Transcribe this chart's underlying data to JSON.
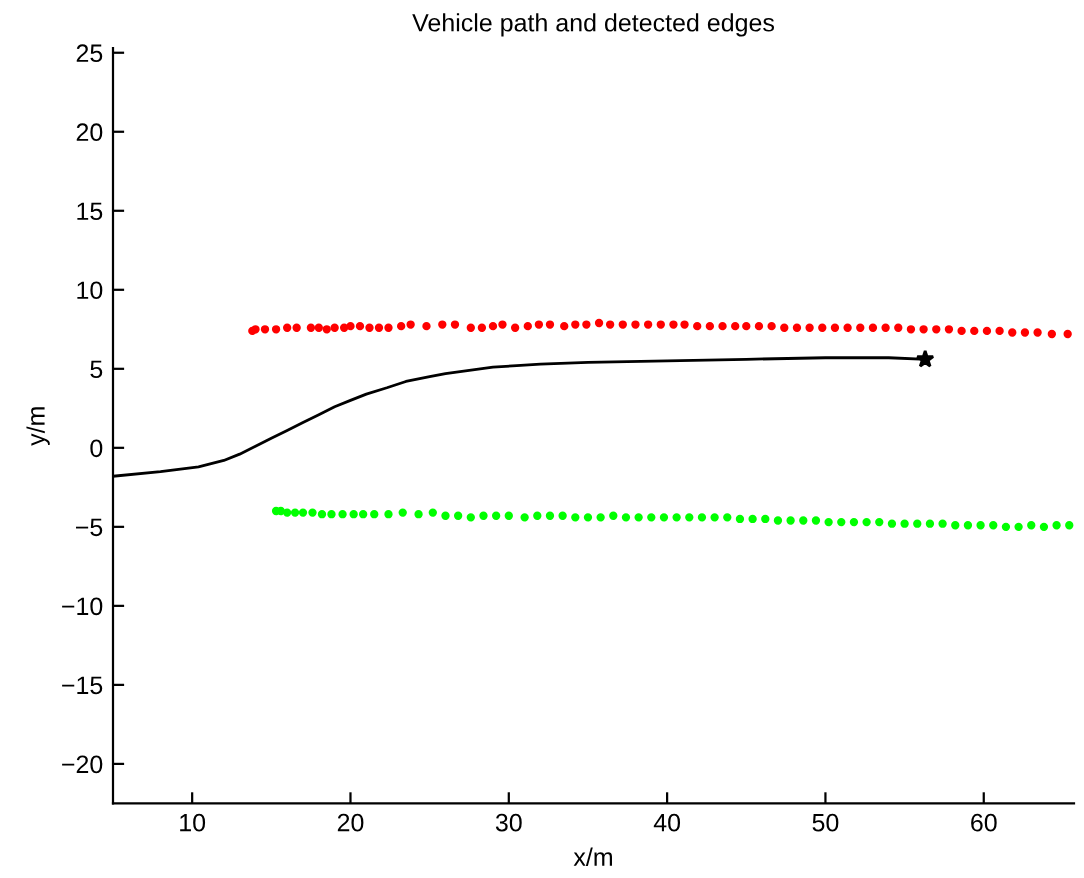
{
  "chart_data": {
    "type": "scatter",
    "title": "Vehicle path and detected edges",
    "xlabel": "x/m",
    "ylabel": "y/m",
    "xlim": [
      5,
      65.7
    ],
    "ylim": [
      -22.5,
      25.3
    ],
    "xticks": [
      10,
      20,
      30,
      40,
      50,
      60
    ],
    "yticks": [
      -20,
      -15,
      -10,
      -5,
      0,
      5,
      10,
      15,
      20,
      25
    ],
    "grid": false,
    "legend": false,
    "series": [
      {
        "color": "#ff0000",
        "marker": "circle",
        "x": [
          13.8,
          14.0,
          14.6,
          15.3,
          16.0,
          16.6,
          17.5,
          18.0,
          18.5,
          19.0,
          19.6,
          20.0,
          20.6,
          21.2,
          21.8,
          22.4,
          23.2,
          23.8,
          24.8,
          25.8,
          26.6,
          27.6,
          28.3,
          29.0,
          29.6,
          30.4,
          31.2,
          31.9,
          32.6,
          33.5,
          34.2,
          34.9,
          35.7,
          36.4,
          37.2,
          38.0,
          38.8,
          39.6,
          40.4,
          41.1,
          41.9,
          42.7,
          43.5,
          44.3,
          45.0,
          45.8,
          46.6,
          47.4,
          48.2,
          49.0,
          49.8,
          50.6,
          51.4,
          52.2,
          53.0,
          53.8,
          54.6,
          55.4,
          56.2,
          57.0,
          57.8,
          58.6,
          59.4,
          60.2,
          61.0,
          61.8,
          62.6,
          63.4,
          64.3,
          65.3
        ],
        "values": [
          7.4,
          7.5,
          7.5,
          7.5,
          7.6,
          7.6,
          7.6,
          7.6,
          7.5,
          7.6,
          7.6,
          7.7,
          7.7,
          7.6,
          7.6,
          7.6,
          7.7,
          7.8,
          7.7,
          7.8,
          7.8,
          7.6,
          7.6,
          7.7,
          7.8,
          7.6,
          7.7,
          7.8,
          7.8,
          7.7,
          7.8,
          7.8,
          7.9,
          7.8,
          7.8,
          7.8,
          7.8,
          7.8,
          7.8,
          7.8,
          7.7,
          7.7,
          7.7,
          7.7,
          7.7,
          7.7,
          7.7,
          7.6,
          7.6,
          7.6,
          7.6,
          7.6,
          7.6,
          7.6,
          7.6,
          7.6,
          7.6,
          7.5,
          7.5,
          7.5,
          7.5,
          7.4,
          7.4,
          7.4,
          7.4,
          7.3,
          7.3,
          7.3,
          7.2,
          7.2
        ]
      },
      {
        "color": "#00ff00",
        "marker": "circle",
        "x": [
          15.3,
          15.6,
          16.0,
          16.5,
          17.0,
          17.6,
          18.2,
          18.8,
          19.5,
          20.2,
          20.8,
          21.5,
          22.4,
          23.3,
          24.3,
          25.2,
          26.0,
          26.8,
          27.6,
          28.4,
          29.2,
          30.0,
          31.0,
          31.8,
          32.6,
          33.4,
          34.2,
          35.0,
          35.8,
          36.6,
          37.4,
          38.2,
          39.0,
          39.8,
          40.6,
          41.4,
          42.2,
          43.0,
          43.8,
          44.6,
          45.4,
          46.2,
          47.0,
          47.8,
          48.6,
          49.4,
          50.2,
          51.0,
          51.8,
          52.6,
          53.4,
          54.2,
          55.0,
          55.8,
          56.6,
          57.4,
          58.2,
          59.0,
          59.8,
          60.6,
          61.4,
          62.2,
          63.0,
          63.8,
          64.6,
          65.4
        ],
        "values": [
          -4.0,
          -4.0,
          -4.1,
          -4.1,
          -4.1,
          -4.1,
          -4.2,
          -4.2,
          -4.2,
          -4.2,
          -4.2,
          -4.2,
          -4.2,
          -4.1,
          -4.2,
          -4.1,
          -4.3,
          -4.3,
          -4.4,
          -4.3,
          -4.3,
          -4.3,
          -4.4,
          -4.3,
          -4.3,
          -4.3,
          -4.4,
          -4.4,
          -4.4,
          -4.3,
          -4.4,
          -4.4,
          -4.4,
          -4.4,
          -4.4,
          -4.4,
          -4.4,
          -4.4,
          -4.4,
          -4.5,
          -4.5,
          -4.5,
          -4.6,
          -4.6,
          -4.6,
          -4.6,
          -4.7,
          -4.7,
          -4.7,
          -4.7,
          -4.7,
          -4.8,
          -4.8,
          -4.8,
          -4.8,
          -4.8,
          -4.9,
          -4.9,
          -4.9,
          -4.9,
          -5.0,
          -5.0,
          -4.9,
          -5.0,
          -4.9,
          -4.9
        ]
      },
      {
        "type": "line",
        "color": "#000000",
        "marker": "none",
        "line_style": "solid",
        "x": [
          5,
          8,
          10.4,
          12,
          13,
          14,
          15,
          16,
          17,
          18,
          19,
          20,
          21,
          22.3,
          23.5,
          25,
          26,
          27.5,
          29,
          30.5,
          32,
          35,
          40,
          45,
          50,
          54,
          56.3
        ],
        "values": [
          -1.8,
          -1.5,
          -1.2,
          -0.8,
          -0.4,
          0.1,
          0.6,
          1.1,
          1.6,
          2.1,
          2.6,
          3.0,
          3.4,
          3.8,
          4.2,
          4.5,
          4.7,
          4.9,
          5.1,
          5.2,
          5.3,
          5.4,
          5.5,
          5.6,
          5.7,
          5.7,
          5.6
        ]
      },
      {
        "color": "#000000",
        "marker": "star",
        "x": [
          56.3
        ],
        "values": [
          5.6
        ]
      }
    ]
  }
}
